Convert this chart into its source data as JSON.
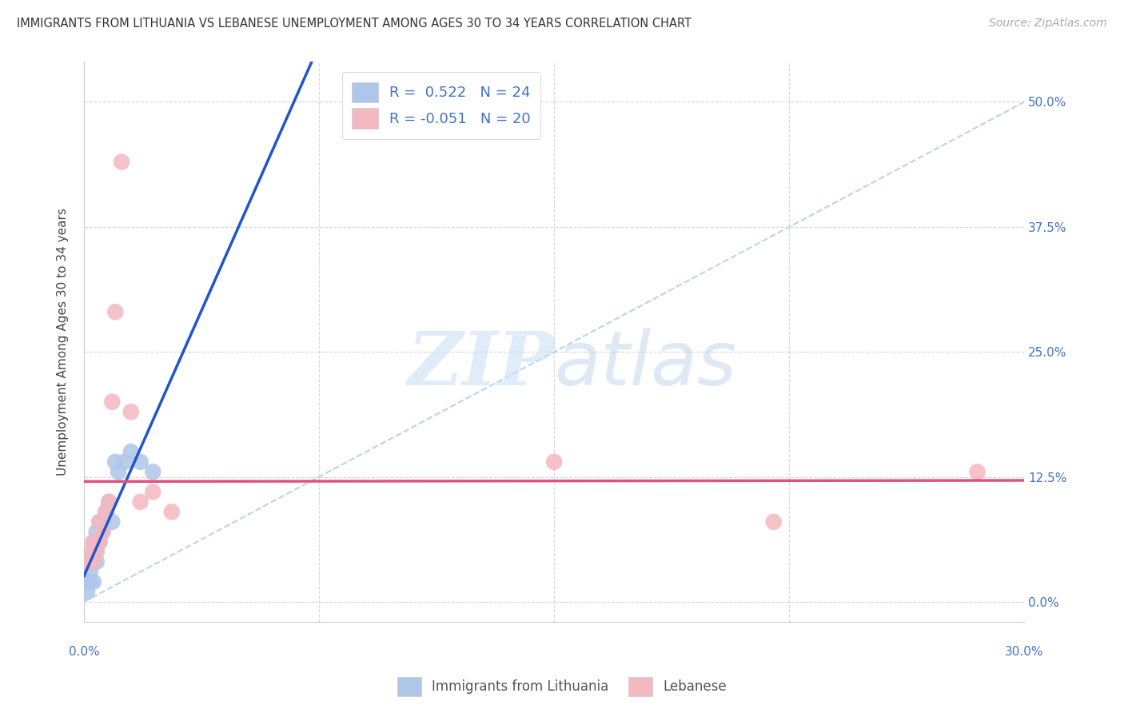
{
  "title": "IMMIGRANTS FROM LITHUANIA VS LEBANESE UNEMPLOYMENT AMONG AGES 30 TO 34 YEARS CORRELATION CHART",
  "source": "Source: ZipAtlas.com",
  "ylabel_label": "Unemployment Among Ages 30 to 34 years",
  "x_min": 0.0,
  "x_max": 0.3,
  "y_min": -0.02,
  "y_max": 0.54,
  "y_ticks": [
    0.0,
    0.125,
    0.25,
    0.375,
    0.5
  ],
  "x_ticks": [
    0.0,
    0.075,
    0.15,
    0.225,
    0.3
  ],
  "lithuania_color": "#aec6e8",
  "lebanese_color": "#f4b8c1",
  "lithuania_line_color": "#2255cc",
  "lebanese_line_color": "#e05080",
  "diagonal_color": "#b8d4f0",
  "background": "#ffffff",
  "grid_color": "#cccccc",
  "watermark_zip": "ZIP",
  "watermark_atlas": "atlas",
  "R_lithuania": "0.522",
  "N_lithuania": "24",
  "R_lebanese": "-0.051",
  "N_lebanese": "20",
  "legend_label_1": "Immigrants from Lithuania",
  "legend_label_2": "Lebanese",
  "lithuania_x": [
    0.001,
    0.001,
    0.002,
    0.002,
    0.002,
    0.003,
    0.003,
    0.003,
    0.003,
    0.004,
    0.004,
    0.004,
    0.005,
    0.005,
    0.006,
    0.007,
    0.008,
    0.009,
    0.01,
    0.011,
    0.013,
    0.015,
    0.018,
    0.022
  ],
  "lithuania_y": [
    0.01,
    0.02,
    0.02,
    0.03,
    0.04,
    0.02,
    0.04,
    0.05,
    0.06,
    0.04,
    0.05,
    0.07,
    0.06,
    0.08,
    0.07,
    0.09,
    0.1,
    0.08,
    0.14,
    0.13,
    0.14,
    0.15,
    0.14,
    0.13
  ],
  "lebanese_x": [
    0.001,
    0.002,
    0.003,
    0.003,
    0.004,
    0.005,
    0.005,
    0.006,
    0.007,
    0.008,
    0.009,
    0.01,
    0.012,
    0.015,
    0.018,
    0.022,
    0.028,
    0.15,
    0.22,
    0.285
  ],
  "lebanese_y": [
    0.04,
    0.05,
    0.04,
    0.06,
    0.05,
    0.06,
    0.08,
    0.07,
    0.09,
    0.1,
    0.2,
    0.29,
    0.44,
    0.19,
    0.1,
    0.11,
    0.09,
    0.14,
    0.08,
    0.13
  ]
}
